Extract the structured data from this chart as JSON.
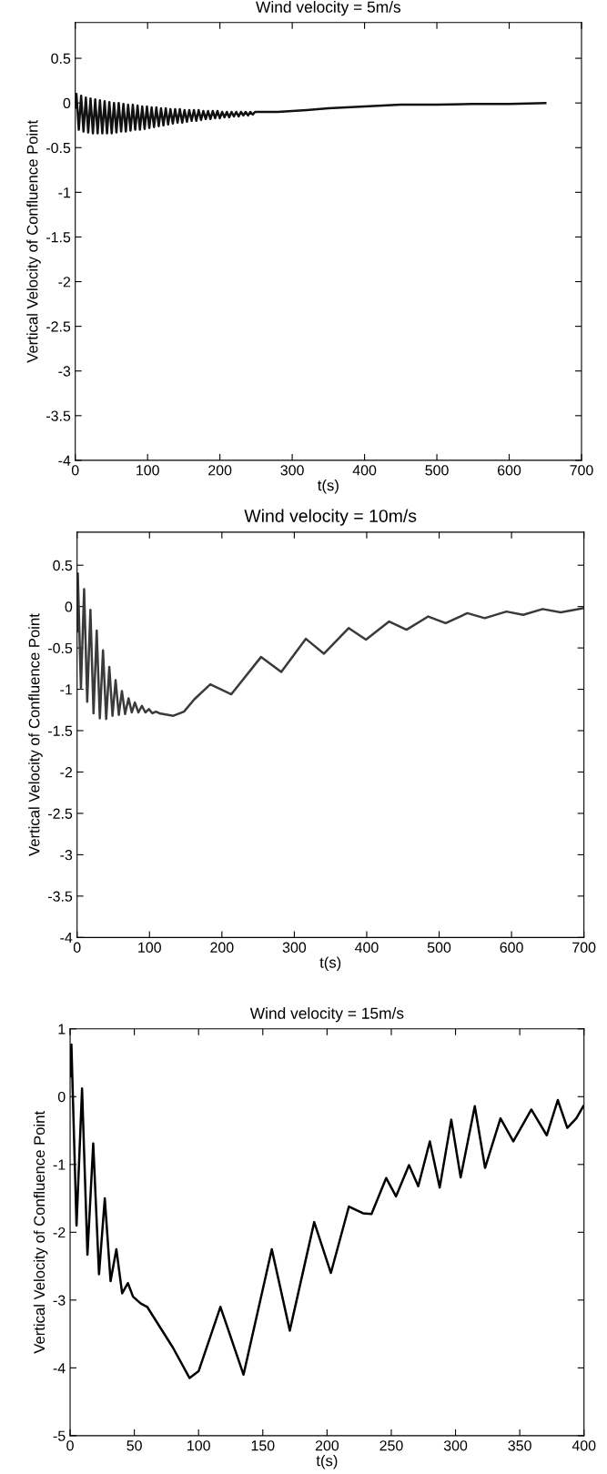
{
  "chart_data": [
    {
      "type": "line",
      "title": "Wind velocity = 5m/s",
      "xlabel": "t(s)",
      "ylabel": "Vertical Velocity of Confluence Point",
      "xlim": [
        0,
        700
      ],
      "xticks": [
        0,
        100,
        200,
        300,
        400,
        500,
        600,
        700
      ],
      "ylim": [
        -4,
        0.9
      ],
      "yticks": [
        -4,
        -3.5,
        -3,
        -2.5,
        -2,
        -1.5,
        -1,
        -0.5,
        0,
        0.5
      ],
      "grid": false,
      "legend": false,
      "series": [
        {
          "color": "#111111",
          "x": [
            0,
            1.6,
            4.9,
            8.1,
            11.4,
            14.6,
            17.9,
            21.1,
            24.4,
            27.6,
            30.9,
            34.1,
            37.4,
            40.6,
            43.9,
            47.1,
            50.4,
            53.6,
            56.9,
            60.1,
            63.4,
            66.6,
            69.9,
            73.1,
            76.4,
            79.6,
            82.9,
            86.1,
            89.4,
            92.6,
            95.9,
            99.1,
            102.4,
            105.6,
            108.9,
            112.1,
            115.4,
            118.6,
            121.9,
            125.1,
            128.4,
            131.6,
            134.9,
            138.1,
            141.4,
            144.6,
            147.9,
            151.1,
            154.4,
            157.6,
            160.9,
            164.1,
            167.4,
            170.6,
            173.9,
            177.1,
            180.4,
            183.6,
            186.9,
            190.1,
            193.4,
            196.6,
            199.9,
            203.1,
            206.4,
            209.6,
            212.9,
            216.1,
            219.4,
            222.6,
            225.9,
            229.1,
            232.4,
            235.6,
            238.9,
            242.1,
            245.4,
            248.6,
            280,
            320,
            350,
            400,
            450,
            500,
            550,
            600,
            650
          ],
          "values": [
            -0.05,
            0.1,
            -0.3,
            0.08,
            -0.32,
            0.06,
            -0.33,
            0.05,
            -0.34,
            0.04,
            -0.34,
            0.03,
            -0.34,
            0.02,
            -0.34,
            0.01,
            -0.34,
            0.0,
            -0.33,
            0.0,
            -0.32,
            -0.01,
            -0.32,
            -0.02,
            -0.31,
            -0.02,
            -0.3,
            -0.03,
            -0.3,
            -0.04,
            -0.29,
            -0.04,
            -0.28,
            -0.05,
            -0.27,
            -0.05,
            -0.26,
            -0.06,
            -0.25,
            -0.06,
            -0.24,
            -0.07,
            -0.23,
            -0.07,
            -0.22,
            -0.07,
            -0.22,
            -0.08,
            -0.21,
            -0.08,
            -0.2,
            -0.08,
            -0.2,
            -0.08,
            -0.19,
            -0.09,
            -0.18,
            -0.09,
            -0.18,
            -0.09,
            -0.17,
            -0.09,
            -0.17,
            -0.1,
            -0.16,
            -0.1,
            -0.16,
            -0.1,
            -0.15,
            -0.1,
            -0.15,
            -0.1,
            -0.14,
            -0.1,
            -0.14,
            -0.1,
            -0.13,
            -0.1,
            -0.1,
            -0.08,
            -0.06,
            -0.04,
            -0.02,
            -0.02,
            -0.01,
            -0.01,
            0.0
          ]
        }
      ]
    },
    {
      "type": "line",
      "title": "Wind velocity = 10m/s",
      "xlabel": "t(s)",
      "ylabel": "Vertical Velocity of Confluence Point",
      "xlim": [
        0,
        700
      ],
      "xticks": [
        0,
        100,
        200,
        300,
        400,
        500,
        600,
        700
      ],
      "ylim": [
        -4,
        0.9
      ],
      "yticks": [
        -4,
        -3.5,
        -3,
        -2.5,
        -2,
        -1.5,
        -1,
        -0.5,
        0,
        0.5
      ],
      "grid": false,
      "legend": false,
      "series": [
        {
          "color": "#3a3a3a",
          "x": [
            0,
            1.0,
            5.3,
            9.7,
            14.0,
            18.4,
            22.7,
            27.1,
            31.4,
            35.8,
            40.2,
            44.5,
            48.9,
            53.2,
            57.6,
            61.9,
            66.3,
            71.1,
            75.5,
            79.8,
            84.7,
            89.5,
            94.3,
            99.2,
            104,
            108.9,
            113.7,
            133,
            147.6,
            162,
            184,
            213,
            254,
            282,
            316,
            341,
            375,
            399,
            431,
            455,
            485,
            509,
            539,
            563,
            593,
            616,
            643,
            668,
            699
          ],
          "values": [
            -0.3,
            0.4,
            -0.99,
            0.21,
            -1.15,
            -0.04,
            -1.29,
            -0.29,
            -1.35,
            -0.53,
            -1.36,
            -0.73,
            -1.32,
            -0.89,
            -1.31,
            -1.02,
            -1.3,
            -1.11,
            -1.28,
            -1.16,
            -1.28,
            -1.2,
            -1.28,
            -1.24,
            -1.29,
            -1.27,
            -1.29,
            -1.32,
            -1.27,
            -1.12,
            -0.94,
            -1.06,
            -0.61,
            -0.79,
            -0.39,
            -0.57,
            -0.26,
            -0.4,
            -0.18,
            -0.28,
            -0.12,
            -0.2,
            -0.08,
            -0.14,
            -0.06,
            -0.1,
            -0.03,
            -0.07,
            -0.02
          ]
        }
      ]
    },
    {
      "type": "line",
      "title": "Wind velocity = 15m/s",
      "xlabel": "t(s)",
      "ylabel": "Vertical Velocity of Confluence Point",
      "xlim": [
        0,
        400
      ],
      "xticks": [
        0,
        50,
        100,
        150,
        200,
        250,
        300,
        350,
        400
      ],
      "ylim": [
        -5,
        1
      ],
      "yticks": [
        -5,
        -4,
        -3,
        -2,
        -1,
        0,
        1
      ],
      "grid": false,
      "legend": false,
      "series": [
        {
          "color": "#000000",
          "x": [
            0,
            1,
            5,
            9.3,
            13.5,
            18,
            22.5,
            27,
            31.5,
            36,
            40.5,
            45,
            49,
            55,
            60,
            65,
            80,
            93,
            100,
            117,
            135,
            157,
            171,
            190,
            203,
            217,
            228,
            234.6,
            246,
            253.7,
            263.8,
            271,
            280,
            287.7,
            296.7,
            304,
            315,
            323,
            335,
            345,
            359,
            371,
            379.6,
            387,
            394,
            399.5
          ],
          "values": [
            0.3,
            0.77,
            -1.9,
            0.12,
            -2.33,
            -0.69,
            -2.62,
            -1.5,
            -2.72,
            -2.25,
            -2.9,
            -2.75,
            -2.95,
            -3.05,
            -3.1,
            -3.25,
            -3.7,
            -4.15,
            -4.05,
            -3.1,
            -4.1,
            -2.25,
            -3.45,
            -1.85,
            -2.6,
            -1.62,
            -1.72,
            -1.73,
            -1.2,
            -1.47,
            -1.01,
            -1.32,
            -0.66,
            -1.34,
            -0.34,
            -1.19,
            -0.14,
            -1.05,
            -0.32,
            -0.66,
            -0.19,
            -0.57,
            -0.05,
            -0.46,
            -0.32,
            -0.14
          ]
        }
      ]
    }
  ]
}
